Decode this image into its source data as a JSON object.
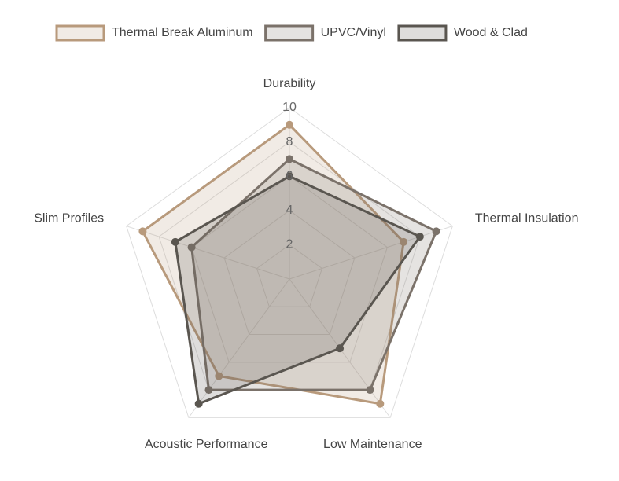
{
  "chart_data": {
    "type": "radar",
    "categories": [
      "Durability",
      "Thermal Insulation",
      "Low Maintenance",
      "Acoustic Performance",
      "Slim Profiles"
    ],
    "series": [
      {
        "name": "Thermal Break Aluminum",
        "color": "#b89a7c",
        "values": [
          9,
          7,
          9,
          7,
          9
        ]
      },
      {
        "name": "UPVC/Vinyl",
        "color": "#7b726a",
        "values": [
          7,
          9,
          8,
          8,
          6
        ]
      },
      {
        "name": "Wood & Clad",
        "color": "#5a5650",
        "values": [
          6,
          8,
          5,
          9,
          7
        ]
      }
    ],
    "ylim": [
      0,
      10
    ],
    "yticks": [
      2,
      4,
      6,
      8,
      10
    ],
    "grid": true
  }
}
